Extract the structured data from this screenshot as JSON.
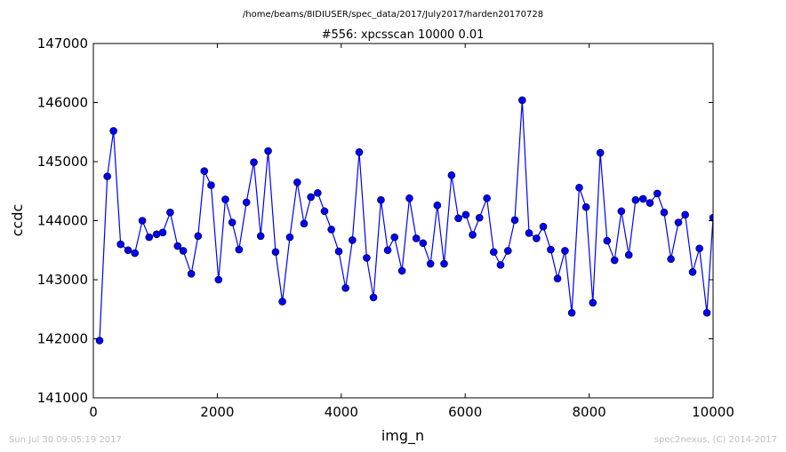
{
  "chart_data": {
    "type": "line",
    "suptitle": "/home/beams/8IDIUSER/spec_data/2017/July2017/harden20170728",
    "title": "#556: xpcsscan 10000 0.01",
    "xlabel": "img_n",
    "ylabel": "ccdc",
    "xlim": [
      0,
      10000
    ],
    "ylim": [
      141000,
      147000
    ],
    "xticks": [
      0,
      2000,
      4000,
      6000,
      8000,
      10000
    ],
    "xtick_labels": [
      "0",
      "2000",
      "4000",
      "6000",
      "8000",
      "10000"
    ],
    "yticks": [
      141000,
      142000,
      143000,
      144000,
      145000,
      146000,
      147000
    ],
    "ytick_labels": [
      "141000",
      "142000",
      "143000",
      "144000",
      "145000",
      "146000",
      "147000"
    ],
    "grid": false,
    "marker": "circle",
    "color": "#0000ff",
    "series": [
      {
        "x": [
          100,
          225,
          325,
          440,
          560,
          670,
          790,
          900,
          1020,
          1120,
          1240,
          1360,
          1450,
          1580,
          1690,
          1790,
          1900,
          2020,
          2130,
          2240,
          2350,
          2470,
          2590,
          2700,
          2820,
          2940,
          3050,
          3170,
          3290,
          3400,
          3510,
          3620,
          3730,
          3840,
          3960,
          4070,
          4180,
          4290,
          4410,
          4520,
          4640,
          4750,
          4860,
          4980,
          5100,
          5210,
          5320,
          5440,
          5550,
          5660,
          5780,
          5890,
          6010,
          6120,
          6230,
          6350,
          6460,
          6570,
          6690,
          6800,
          6920,
          7030,
          7150,
          7260,
          7380,
          7490,
          7610,
          7720,
          7840,
          7950,
          8060,
          8180,
          8290,
          8410,
          8520,
          8640,
          8750,
          8870,
          8980,
          9100,
          9210,
          9320,
          9440,
          9550,
          9670,
          9780,
          9900,
          10000
        ],
        "y": [
          141970,
          144750,
          145520,
          143600,
          143500,
          143450,
          144000,
          143720,
          143770,
          143800,
          144140,
          143570,
          143490,
          143100,
          143740,
          144840,
          144600,
          143000,
          144360,
          143970,
          143510,
          144310,
          144990,
          143740,
          145180,
          143470,
          142630,
          143720,
          144650,
          143950,
          144400,
          144470,
          144160,
          143850,
          143480,
          142860,
          143670,
          145160,
          143370,
          142700,
          144350,
          143500,
          143720,
          143150,
          144380,
          143700,
          143620,
          143270,
          144260,
          143270,
          144770,
          144040,
          144100,
          143760,
          144050,
          144380,
          143470,
          143250,
          143490,
          144010,
          146040,
          143790,
          143700,
          143900,
          143510,
          143020,
          143490,
          142440,
          144560,
          144230,
          142610,
          145150,
          143660,
          143330,
          144160,
          143420,
          144350,
          144370,
          144300,
          144460,
          144140,
          143350,
          143970,
          144100,
          143130,
          143530,
          142440,
          144050
        ]
      }
    ]
  },
  "footer": {
    "timestamp": "Sun Jul 30 09:05:19 2017",
    "credit": "spec2nexus, (C) 2014-2017"
  }
}
